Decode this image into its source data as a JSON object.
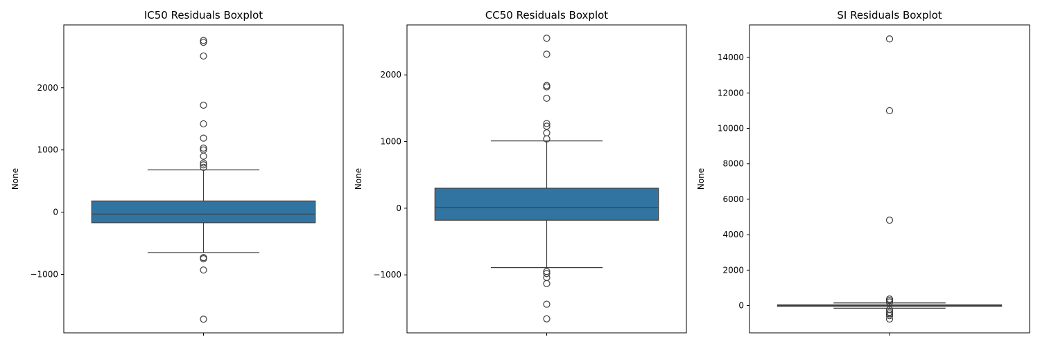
{
  "colors": {
    "box_fill": "#3274a1",
    "line": "#3d3d3d",
    "axis": "#000000",
    "background": "#ffffff"
  },
  "chart_data": [
    {
      "type": "box",
      "title": "IC50 Residuals Boxplot",
      "xlabel": "",
      "ylabel": "None",
      "ylim": [
        -1940,
        3010
      ],
      "yticks": [
        -1000,
        0,
        1000,
        2000
      ],
      "box": {
        "whisker_low": -650,
        "q1": -170,
        "median": -30,
        "q3": 180,
        "whisker_high": 680
      },
      "outliers": [
        2760,
        2730,
        2510,
        1720,
        1420,
        1190,
        1030,
        1000,
        900,
        790,
        760,
        720,
        -730,
        -750,
        -930,
        -1720
      ]
    },
    {
      "type": "box",
      "title": "CC50 Residuals Boxplot",
      "xlabel": "",
      "ylabel": "None",
      "ylim": [
        -1870,
        2750
      ],
      "yticks": [
        -1000,
        0,
        1000,
        2000
      ],
      "box": {
        "whisker_low": -890,
        "q1": -180,
        "median": 10,
        "q3": 300,
        "whisker_high": 1010
      },
      "outliers": [
        2550,
        2310,
        1840,
        1820,
        1650,
        1270,
        1230,
        1130,
        1040,
        -950,
        -980,
        -1040,
        -1130,
        -1440,
        -1660
      ]
    },
    {
      "type": "box",
      "title": "SI Residuals Boxplot",
      "xlabel": "",
      "ylabel": "None",
      "ylim": [
        -1540,
        15840
      ],
      "yticks": [
        0,
        2000,
        4000,
        6000,
        8000,
        10000,
        12000,
        14000
      ],
      "box": {
        "whisker_low": -150,
        "q1": -40,
        "median": 0,
        "q3": 40,
        "whisker_high": 150
      },
      "outliers": [
        15050,
        11000,
        4820,
        370,
        280,
        200,
        -230,
        -380,
        -470,
        -570,
        -760
      ]
    }
  ]
}
